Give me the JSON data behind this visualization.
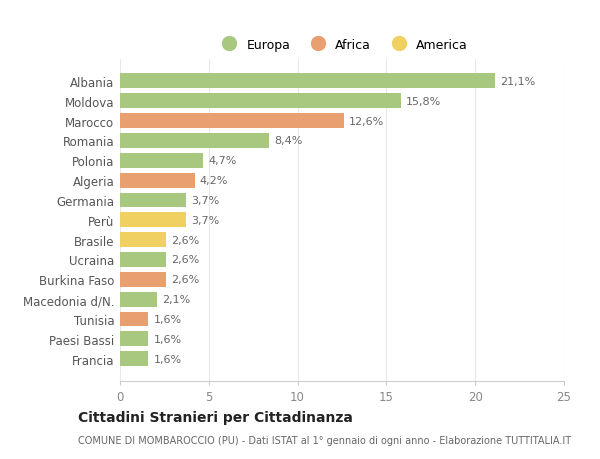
{
  "categories": [
    "Albania",
    "Moldova",
    "Marocco",
    "Romania",
    "Polonia",
    "Algeria",
    "Germania",
    "Perù",
    "Brasile",
    "Ucraina",
    "Burkina Faso",
    "Macedonia d/N.",
    "Tunisia",
    "Paesi Bassi",
    "Francia"
  ],
  "values": [
    21.1,
    15.8,
    12.6,
    8.4,
    4.7,
    4.2,
    3.7,
    3.7,
    2.6,
    2.6,
    2.6,
    2.1,
    1.6,
    1.6,
    1.6
  ],
  "labels": [
    "21,1%",
    "15,8%",
    "12,6%",
    "8,4%",
    "4,7%",
    "4,2%",
    "3,7%",
    "3,7%",
    "2,6%",
    "2,6%",
    "2,6%",
    "2,1%",
    "1,6%",
    "1,6%",
    "1,6%"
  ],
  "continent": [
    "Europa",
    "Europa",
    "Africa",
    "Europa",
    "Europa",
    "Africa",
    "Europa",
    "America",
    "America",
    "Europa",
    "Africa",
    "Europa",
    "Africa",
    "Europa",
    "Europa"
  ],
  "colors": {
    "Europa": "#a8c880",
    "Africa": "#e8a070",
    "America": "#f0d060"
  },
  "xlim": [
    0,
    25
  ],
  "xticks": [
    0,
    5,
    10,
    15,
    20,
    25
  ],
  "title": "Cittadini Stranieri per Cittadinanza",
  "subtitle": "COMUNE DI MOMBAROCCIO (PU) - Dati ISTAT al 1° gennaio di ogni anno - Elaborazione TUTTITALIA.IT",
  "bg_color": "#ffffff",
  "grid_color": "#e8e8e8",
  "bar_height": 0.75,
  "label_fontsize": 8,
  "tick_fontsize": 8.5,
  "title_fontsize": 10,
  "subtitle_fontsize": 7
}
